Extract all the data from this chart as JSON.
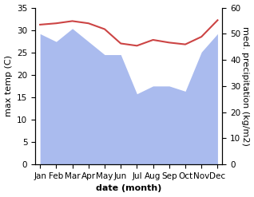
{
  "months": [
    "Jan",
    "Feb",
    "Mar",
    "Apr",
    "May",
    "Jun",
    "Jul",
    "Aug",
    "Sep",
    "Oct",
    "Nov",
    "Dec"
  ],
  "temperature": [
    31.2,
    31.5,
    32.0,
    31.5,
    30.2,
    27.0,
    26.5,
    27.8,
    27.2,
    26.8,
    28.5,
    32.2
  ],
  "precipitation": [
    50,
    47,
    52,
    47,
    42,
    42,
    27,
    30,
    30,
    28,
    43,
    50
  ],
  "temp_color": "#cc4444",
  "precip_color": "#aabbee",
  "background_color": "#ffffff",
  "left_ylabel": "max temp (C)",
  "right_ylabel": "med. precipitation (kg/m2)",
  "xlabel": "date (month)",
  "ylim_left": [
    0,
    35
  ],
  "ylim_right": [
    0,
    60
  ],
  "left_yticks": [
    0,
    5,
    10,
    15,
    20,
    25,
    30,
    35
  ],
  "right_yticks": [
    0,
    10,
    20,
    30,
    40,
    50,
    60
  ],
  "label_fontsize": 8,
  "tick_fontsize": 7.5
}
